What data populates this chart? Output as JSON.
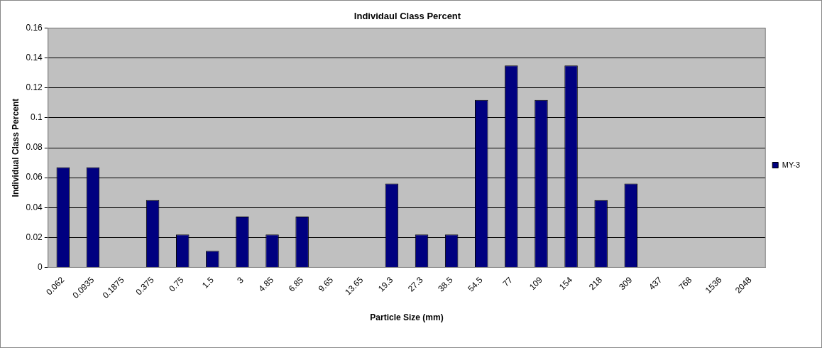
{
  "chart_data": {
    "type": "bar",
    "title": "Individaul Class Percent",
    "xlabel": "Particle Size (mm)",
    "ylabel": "Individual Class Percent",
    "categories": [
      "0.062",
      "0.0935",
      "0.1875",
      "0.375",
      "0.75",
      "1.5",
      "3",
      "4.85",
      "6.85",
      "9.65",
      "13.65",
      "19.3",
      "27.3",
      "38.5",
      "54.5",
      "77",
      "109",
      "154",
      "218",
      "309",
      "437",
      "768",
      "1536",
      "2048"
    ],
    "series": [
      {
        "name": "MY-3",
        "color": "#000080",
        "values": [
          0.067,
          0.067,
          0,
          0.045,
          0.022,
          0.011,
          0.034,
          0.022,
          0.034,
          0,
          0,
          0.056,
          0.022,
          0.022,
          0.112,
          0.135,
          0.112,
          0.135,
          0.045,
          0.056,
          0,
          0,
          0,
          0
        ]
      }
    ],
    "ylim": [
      0,
      0.16
    ],
    "yticks": [
      0,
      0.02,
      0.04,
      0.06,
      0.08,
      0.1,
      0.12,
      0.14,
      0.16
    ],
    "grid": "y",
    "legend": "right"
  }
}
